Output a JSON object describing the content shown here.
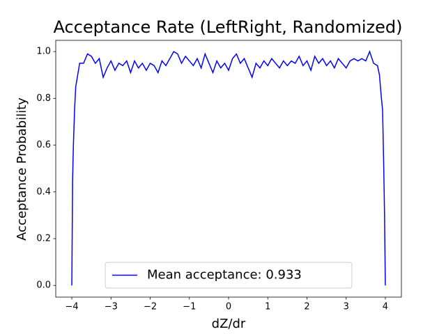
{
  "chart_data": {
    "type": "line",
    "title": "Acceptance Rate (LeftRight, Randomized)",
    "x_label": "dZ/dr",
    "y_label": "Acceptance Probability",
    "x": [
      -4.0,
      -3.98,
      -3.96,
      -3.93,
      -3.9,
      -3.85,
      -3.8,
      -3.7,
      -3.6,
      -3.5,
      -3.4,
      -3.3,
      -3.2,
      -3.1,
      -3.0,
      -2.9,
      -2.8,
      -2.7,
      -2.6,
      -2.5,
      -2.4,
      -2.3,
      -2.2,
      -2.1,
      -2.0,
      -1.9,
      -1.8,
      -1.7,
      -1.6,
      -1.5,
      -1.4,
      -1.3,
      -1.2,
      -1.1,
      -1.0,
      -0.9,
      -0.8,
      -0.7,
      -0.6,
      -0.5,
      -0.4,
      -0.3,
      -0.2,
      -0.1,
      0.0,
      0.1,
      0.2,
      0.3,
      0.4,
      0.5,
      0.6,
      0.7,
      0.8,
      0.9,
      1.0,
      1.1,
      1.2,
      1.3,
      1.4,
      1.5,
      1.6,
      1.7,
      1.8,
      1.9,
      2.0,
      2.1,
      2.2,
      2.3,
      2.4,
      2.5,
      2.6,
      2.7,
      2.8,
      2.9,
      3.0,
      3.1,
      3.2,
      3.3,
      3.4,
      3.5,
      3.6,
      3.7,
      3.8,
      3.85,
      3.9,
      3.93,
      3.96,
      3.98,
      4.0
    ],
    "series": [
      {
        "name": "Mean acceptance: 0.933",
        "color": "#0000ff",
        "values": [
          0.0,
          0.45,
          0.6,
          0.75,
          0.85,
          0.9,
          0.95,
          0.95,
          0.99,
          0.98,
          0.95,
          0.97,
          0.89,
          0.93,
          0.96,
          0.92,
          0.95,
          0.94,
          0.96,
          0.91,
          0.96,
          0.93,
          0.95,
          0.92,
          0.95,
          0.94,
          0.91,
          0.96,
          0.94,
          0.97,
          1.0,
          0.99,
          0.95,
          0.98,
          0.96,
          0.94,
          0.97,
          0.93,
          0.99,
          0.95,
          0.91,
          0.96,
          0.93,
          0.95,
          0.92,
          0.97,
          0.99,
          0.95,
          0.97,
          0.93,
          0.89,
          0.95,
          0.93,
          0.96,
          0.94,
          0.97,
          0.95,
          0.93,
          0.96,
          0.94,
          0.96,
          0.95,
          0.98,
          0.94,
          0.96,
          0.92,
          0.98,
          0.95,
          0.97,
          0.94,
          0.96,
          0.93,
          0.97,
          0.95,
          0.93,
          0.96,
          0.97,
          0.96,
          0.97,
          0.96,
          1.0,
          0.95,
          0.94,
          0.9,
          0.8,
          0.75,
          0.5,
          0.3,
          0.0
        ]
      }
    ],
    "xlim": [
      -4.41,
      4.41
    ],
    "ylim": [
      -0.05,
      1.048
    ],
    "xticks": [
      {
        "value": -4,
        "label": "−4"
      },
      {
        "value": -3,
        "label": "−3"
      },
      {
        "value": -2,
        "label": "−2"
      },
      {
        "value": -1,
        "label": "−1"
      },
      0,
      1,
      2,
      3,
      4
    ],
    "yticks": [
      {
        "value": 0,
        "label": "0.0"
      },
      {
        "value": 0.2,
        "label": "0.2"
      },
      {
        "value": 0.4,
        "label": "0.4"
      },
      {
        "value": 0.6,
        "label": "0.6"
      },
      {
        "value": 0.8,
        "label": "0.8"
      },
      {
        "value": 1.0,
        "label": "1.0"
      }
    ],
    "legend": "lower center"
  }
}
